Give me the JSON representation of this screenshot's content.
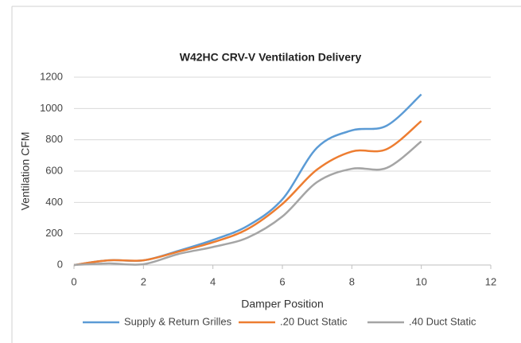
{
  "chart_data": {
    "type": "line",
    "title": "W42HC CRV-V Ventilation Delivery",
    "x_label": "Damper Position",
    "y_label": "Ventilation CFM",
    "x": [
      0,
      1,
      2,
      3,
      4,
      5,
      6,
      7,
      8,
      9,
      10
    ],
    "series": [
      {
        "name": "Supply & Return Grilles",
        "color": "#5b9bd5",
        "values": [
          0,
          30,
          30,
          90,
          160,
          250,
          420,
          750,
          860,
          890,
          1090
        ]
      },
      {
        "name": ".20 Duct Static",
        "color": "#ed7d31",
        "values": [
          0,
          30,
          30,
          85,
          145,
          230,
          390,
          610,
          725,
          740,
          920
        ]
      },
      {
        "name": ".40 Duct Static",
        "color": "#a5a5a5",
        "values": [
          0,
          10,
          5,
          70,
          115,
          175,
          310,
          530,
          615,
          620,
          790
        ]
      }
    ],
    "xlim": [
      0,
      12
    ],
    "xticks": [
      0,
      2,
      4,
      6,
      8,
      10,
      12
    ],
    "ylim": [
      0,
      1200
    ],
    "yticks": [
      0,
      200,
      400,
      600,
      800,
      1000,
      1200
    ],
    "grid": true,
    "legend": "bottom",
    "smooth": true
  }
}
